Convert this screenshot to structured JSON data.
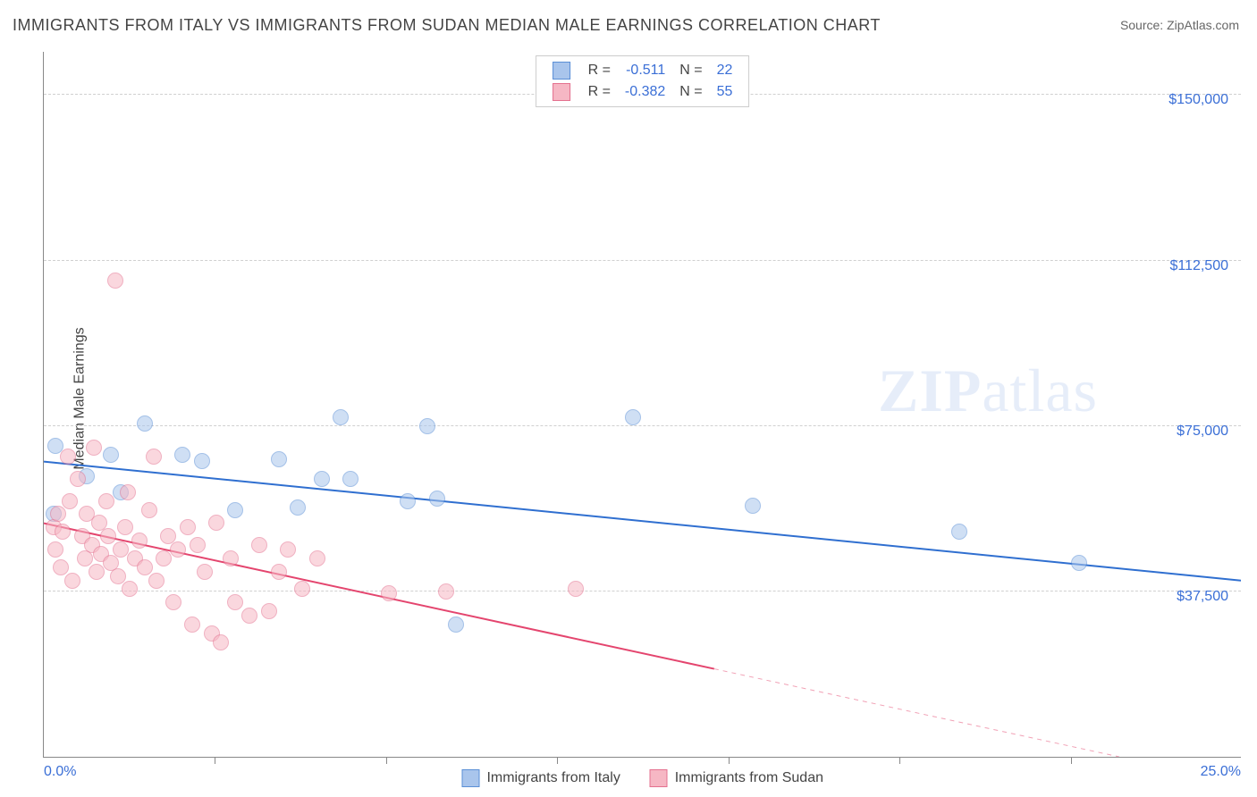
{
  "title": "IMMIGRANTS FROM ITALY VS IMMIGRANTS FROM SUDAN MEDIAN MALE EARNINGS CORRELATION CHART",
  "source_prefix": "Source: ",
  "source_name": "ZipAtlas.com",
  "ylabel": "Median Male Earnings",
  "watermark_bold": "ZIP",
  "watermark_rest": "atlas",
  "chart": {
    "type": "scatter",
    "background_color": "#ffffff",
    "grid_color": "#d0d0d0",
    "axis_color": "#888888",
    "text_color": "#444444",
    "value_color": "#3b6fd6",
    "xlim": [
      0,
      25
    ],
    "ylim": [
      0,
      160000
    ],
    "x_ticks": [
      0,
      25
    ],
    "x_tick_labels": [
      "0.0%",
      "25.0%"
    ],
    "x_minor_ticks": [
      3.57,
      7.14,
      10.71,
      14.29,
      17.86,
      21.43
    ],
    "y_gridlines": [
      37500,
      75000,
      112500,
      150000
    ],
    "y_gridline_labels": [
      "$37,500",
      "$75,000",
      "$112,500",
      "$150,000"
    ],
    "marker_radius": 9,
    "marker_opacity": 0.55,
    "series": [
      {
        "key": "italy",
        "label": "Immigrants from Italy",
        "fill": "#a9c5ec",
        "stroke": "#5a8fd6",
        "line_color": "#2f6fd0",
        "line_width": 2,
        "r_label": "R =",
        "r_value": "-0.511",
        "n_label": "N =",
        "n_value": "22",
        "trend": {
          "x1": 0,
          "y1": 67000,
          "x2": 25,
          "y2": 40000,
          "dash_from_x": null
        },
        "points": [
          {
            "x": 0.2,
            "y": 55000
          },
          {
            "x": 0.25,
            "y": 70500
          },
          {
            "x": 0.9,
            "y": 63500
          },
          {
            "x": 1.4,
            "y": 68500
          },
          {
            "x": 1.6,
            "y": 60000
          },
          {
            "x": 2.1,
            "y": 75500
          },
          {
            "x": 2.9,
            "y": 68500
          },
          {
            "x": 3.3,
            "y": 67000
          },
          {
            "x": 4.0,
            "y": 56000
          },
          {
            "x": 4.9,
            "y": 67500
          },
          {
            "x": 5.3,
            "y": 56500
          },
          {
            "x": 5.8,
            "y": 63000
          },
          {
            "x": 6.2,
            "y": 77000
          },
          {
            "x": 6.4,
            "y": 63000
          },
          {
            "x": 7.6,
            "y": 58000
          },
          {
            "x": 8.0,
            "y": 75000
          },
          {
            "x": 8.2,
            "y": 58500
          },
          {
            "x": 8.6,
            "y": 30000
          },
          {
            "x": 12.3,
            "y": 77000
          },
          {
            "x": 14.8,
            "y": 57000
          },
          {
            "x": 19.1,
            "y": 51000
          },
          {
            "x": 21.6,
            "y": 44000
          }
        ]
      },
      {
        "key": "sudan",
        "label": "Immigrants from Sudan",
        "fill": "#f6b7c4",
        "stroke": "#e4718f",
        "line_color": "#e4456e",
        "line_width": 2,
        "r_label": "R =",
        "r_value": "-0.382",
        "n_label": "N =",
        "n_value": "55",
        "trend": {
          "x1": 0,
          "y1": 53000,
          "x2": 25,
          "y2": -6000,
          "dash_from_x": 14.0
        },
        "points": [
          {
            "x": 0.2,
            "y": 52000
          },
          {
            "x": 0.25,
            "y": 47000
          },
          {
            "x": 0.3,
            "y": 55000
          },
          {
            "x": 0.35,
            "y": 43000
          },
          {
            "x": 0.4,
            "y": 51000
          },
          {
            "x": 0.5,
            "y": 68000
          },
          {
            "x": 0.55,
            "y": 58000
          },
          {
            "x": 0.6,
            "y": 40000
          },
          {
            "x": 0.7,
            "y": 63000
          },
          {
            "x": 0.8,
            "y": 50000
          },
          {
            "x": 0.85,
            "y": 45000
          },
          {
            "x": 0.9,
            "y": 55000
          },
          {
            "x": 1.0,
            "y": 48000
          },
          {
            "x": 1.05,
            "y": 70000
          },
          {
            "x": 1.1,
            "y": 42000
          },
          {
            "x": 1.15,
            "y": 53000
          },
          {
            "x": 1.2,
            "y": 46000
          },
          {
            "x": 1.3,
            "y": 58000
          },
          {
            "x": 1.35,
            "y": 50000
          },
          {
            "x": 1.4,
            "y": 44000
          },
          {
            "x": 1.5,
            "y": 108000
          },
          {
            "x": 1.55,
            "y": 41000
          },
          {
            "x": 1.6,
            "y": 47000
          },
          {
            "x": 1.7,
            "y": 52000
          },
          {
            "x": 1.75,
            "y": 60000
          },
          {
            "x": 1.8,
            "y": 38000
          },
          {
            "x": 1.9,
            "y": 45000
          },
          {
            "x": 2.0,
            "y": 49000
          },
          {
            "x": 2.1,
            "y": 43000
          },
          {
            "x": 2.2,
            "y": 56000
          },
          {
            "x": 2.3,
            "y": 68000
          },
          {
            "x": 2.35,
            "y": 40000
          },
          {
            "x": 2.5,
            "y": 45000
          },
          {
            "x": 2.6,
            "y": 50000
          },
          {
            "x": 2.7,
            "y": 35000
          },
          {
            "x": 2.8,
            "y": 47000
          },
          {
            "x": 3.0,
            "y": 52000
          },
          {
            "x": 3.1,
            "y": 30000
          },
          {
            "x": 3.2,
            "y": 48000
          },
          {
            "x": 3.35,
            "y": 42000
          },
          {
            "x": 3.5,
            "y": 28000
          },
          {
            "x": 3.6,
            "y": 53000
          },
          {
            "x": 3.7,
            "y": 26000
          },
          {
            "x": 3.9,
            "y": 45000
          },
          {
            "x": 4.0,
            "y": 35000
          },
          {
            "x": 4.3,
            "y": 32000
          },
          {
            "x": 4.5,
            "y": 48000
          },
          {
            "x": 4.7,
            "y": 33000
          },
          {
            "x": 4.9,
            "y": 42000
          },
          {
            "x": 5.1,
            "y": 47000
          },
          {
            "x": 5.4,
            "y": 38000
          },
          {
            "x": 5.7,
            "y": 45000
          },
          {
            "x": 7.2,
            "y": 37000
          },
          {
            "x": 8.4,
            "y": 37500
          },
          {
            "x": 11.1,
            "y": 38000
          }
        ]
      }
    ]
  }
}
